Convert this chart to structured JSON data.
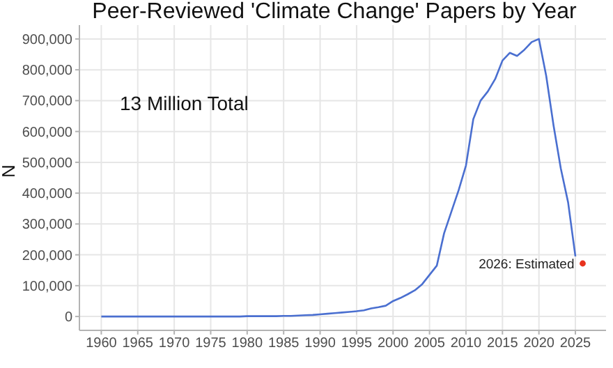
{
  "chart_data": {
    "type": "line",
    "title": "Peer-Reviewed 'Climate Change' Papers by Year",
    "ylabel": "N",
    "annotations": [
      "13 Million Total",
      {
        "text": "2026: Estimated",
        "x": 2026,
        "y": 172000
      }
    ],
    "series": [
      {
        "color": "#4a6fd0",
        "x": [
          1960,
          1961,
          1962,
          1963,
          1964,
          1965,
          1966,
          1967,
          1968,
          1969,
          1970,
          1971,
          1972,
          1973,
          1974,
          1975,
          1976,
          1977,
          1978,
          1979,
          1980,
          1981,
          1982,
          1983,
          1984,
          1985,
          1986,
          1987,
          1988,
          1989,
          1990,
          1991,
          1992,
          1993,
          1994,
          1995,
          1996,
          1997,
          1998,
          1999,
          2000,
          2001,
          2002,
          2003,
          2004,
          2005,
          2006,
          2007,
          2008,
          2009,
          2010,
          2011,
          2012,
          2013,
          2014,
          2015,
          2016,
          2017,
          2018,
          2019,
          2020,
          2021,
          2022,
          2023,
          2024,
          2025
        ],
        "values": [
          0,
          0,
          0,
          0,
          0,
          0,
          0,
          0,
          0,
          0,
          0,
          0,
          0,
          0,
          0,
          0,
          0,
          0,
          0,
          0,
          1000,
          1000,
          1000,
          1000,
          1000,
          2000,
          2000,
          3000,
          4000,
          5000,
          7000,
          9000,
          11000,
          13000,
          15000,
          17000,
          20000,
          26000,
          30000,
          35000,
          50000,
          60000,
          72000,
          85000,
          105000,
          135000,
          165000,
          270000,
          340000,
          410000,
          490000,
          640000,
          700000,
          730000,
          770000,
          830000,
          855000,
          845000,
          865000,
          890000,
          900000,
          780000,
          620000,
          480000,
          370000,
          195000
        ]
      },
      {
        "type": "scatter",
        "color": "#e8321e",
        "x": [
          2026
        ],
        "values": [
          172000
        ]
      }
    ],
    "xlim": [
      1957,
      2029.2
    ],
    "xticks": [
      1960,
      1965,
      1970,
      1975,
      1980,
      1985,
      1990,
      1995,
      2000,
      2005,
      2010,
      2015,
      2020,
      2025
    ],
    "ylim": [
      -45000,
      945000
    ],
    "yticks": [
      {
        "value": 0,
        "label": "0"
      },
      {
        "value": 100000,
        "label": "100,000"
      },
      {
        "value": 200000,
        "label": "200,000"
      },
      {
        "value": 300000,
        "label": "300,000"
      },
      {
        "value": 400000,
        "label": "400,000"
      },
      {
        "value": 500000,
        "label": "500,000"
      },
      {
        "value": 600000,
        "label": "600,000"
      },
      {
        "value": 700000,
        "label": "700,000"
      },
      {
        "value": 800000,
        "label": "800,000"
      },
      {
        "value": 900000,
        "label": "900,000"
      }
    ],
    "grid": true
  }
}
